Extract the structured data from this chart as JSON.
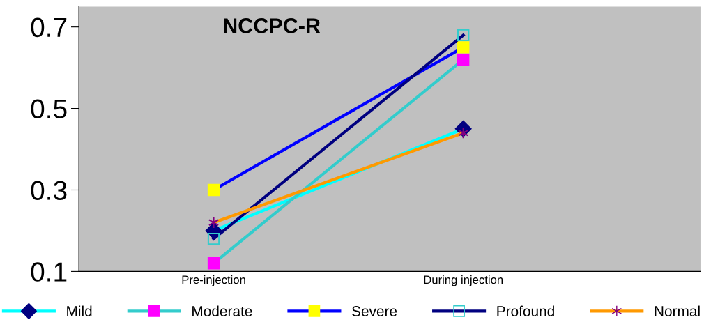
{
  "chart_data": {
    "type": "line",
    "title": "NCCPC-R",
    "categories": [
      "Pre-injection",
      "During injection"
    ],
    "ylim": [
      0.1,
      0.75
    ],
    "yticks": [
      0.1,
      0.3,
      0.5,
      0.7
    ],
    "grid": false,
    "legend": "bottom",
    "series": [
      {
        "name": "Mild",
        "color": "#00ffff",
        "colors": [
          "#000080",
          "#000080"
        ],
        "marker": "diamond",
        "values": [
          0.2,
          0.45
        ]
      },
      {
        "name": "Moderate",
        "color": "#33cccc",
        "colors": [
          "#ff00ff",
          "#ff00ff"
        ],
        "marker": "square",
        "values": [
          0.12,
          0.62
        ]
      },
      {
        "name": "Severe",
        "color": "#0000ff",
        "colors": [
          "#ffff00",
          "#ffff00"
        ],
        "marker": "square",
        "values": [
          0.3,
          0.65
        ]
      },
      {
        "name": "Profound",
        "color": "#000080",
        "colors": [
          "none",
          "none"
        ],
        "marker": "square",
        "values": [
          0.18,
          0.68
        ]
      },
      {
        "name": "Normal",
        "color": "#ff9900",
        "colors": [
          "#800080",
          "#800080"
        ],
        "marker": "cross",
        "values": [
          0.22,
          0.44
        ]
      }
    ]
  }
}
